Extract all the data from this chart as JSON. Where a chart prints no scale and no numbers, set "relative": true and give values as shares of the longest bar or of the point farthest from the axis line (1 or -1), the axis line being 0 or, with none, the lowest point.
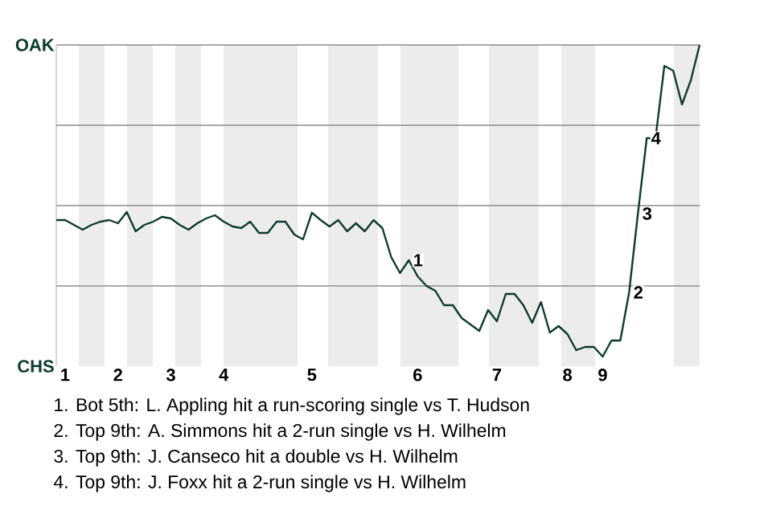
{
  "chart_data": {
    "type": "line",
    "relative": true,
    "categories": [
      null,
      "1",
      null,
      null,
      null,
      null,
      null,
      "2",
      null,
      null,
      null,
      null,
      null,
      "3",
      null,
      null,
      null,
      null,
      null,
      "4",
      null,
      null,
      null,
      null,
      null,
      null,
      null,
      null,
      null,
      "5",
      null,
      null,
      null,
      null,
      null,
      null,
      null,
      null,
      null,
      null,
      null,
      "6",
      null,
      null,
      null,
      null,
      null,
      null,
      null,
      null,
      "7",
      null,
      null,
      null,
      null,
      null,
      null,
      null,
      "8",
      null,
      null,
      null,
      "9",
      null,
      null,
      null,
      null,
      null,
      null,
      null,
      null,
      null,
      null,
      null
    ],
    "series": [
      {
        "color": "#0d3b30",
        "values": [
          0.455,
          0.455,
          0.44,
          0.425,
          0.44,
          0.45,
          0.455,
          0.445,
          0.48,
          0.42,
          0.44,
          0.45,
          0.465,
          0.46,
          0.44,
          0.425,
          0.445,
          0.46,
          0.47,
          0.45,
          0.435,
          0.43,
          0.45,
          0.415,
          0.415,
          0.45,
          0.45,
          0.41,
          0.395,
          0.478,
          0.455,
          0.435,
          0.455,
          0.42,
          0.445,
          0.42,
          0.455,
          0.43,
          0.34,
          0.29,
          0.33,
          0.28,
          0.25,
          0.235,
          0.19,
          0.19,
          0.15,
          0.13,
          0.11,
          0.175,
          0.14,
          0.225,
          0.225,
          0.19,
          0.135,
          0.2,
          0.105,
          0.125,
          0.1,
          0.05,
          0.06,
          0.06,
          0.03,
          0.08,
          0.08,
          0.23,
          0.475,
          0.71,
          0.71,
          0.935,
          0.92,
          0.815,
          0.89,
          1
        ]
      }
    ],
    "grid": false,
    "line_style": "solid",
    "ref_lines": [
      {
        "axis": "y",
        "value": 0.25,
        "color": "#8c8c8c"
      },
      {
        "axis": "y",
        "value": 0.5,
        "color": "#8c8c8c"
      },
      {
        "axis": "y",
        "value": 0.75,
        "color": "#8c8c8c"
      },
      {
        "axis": "y",
        "value": 1,
        "color": "#8c8c8c"
      }
    ],
    "annotations": [
      "OAK",
      "CHS",
      {
        "text": "1",
        "y": 0.33
      },
      {
        "text": "2",
        "y": 0.23
      },
      {
        "text": "3",
        "y": 0.475
      },
      {
        "text": "4",
        "y": 0.71
      },
      "1. Bot 5th: L. Appling hit a run-scoring single vs T. Hudson",
      "2. Top 9th: A. Simmons hit a 2-run single vs H. Wilhelm",
      "3. Top 9th: J. Canseco hit a double vs H. Wilhelm",
      "4. Top 9th: J. Foxx hit a 2-run single vs H. Wilhelm"
    ]
  }
}
